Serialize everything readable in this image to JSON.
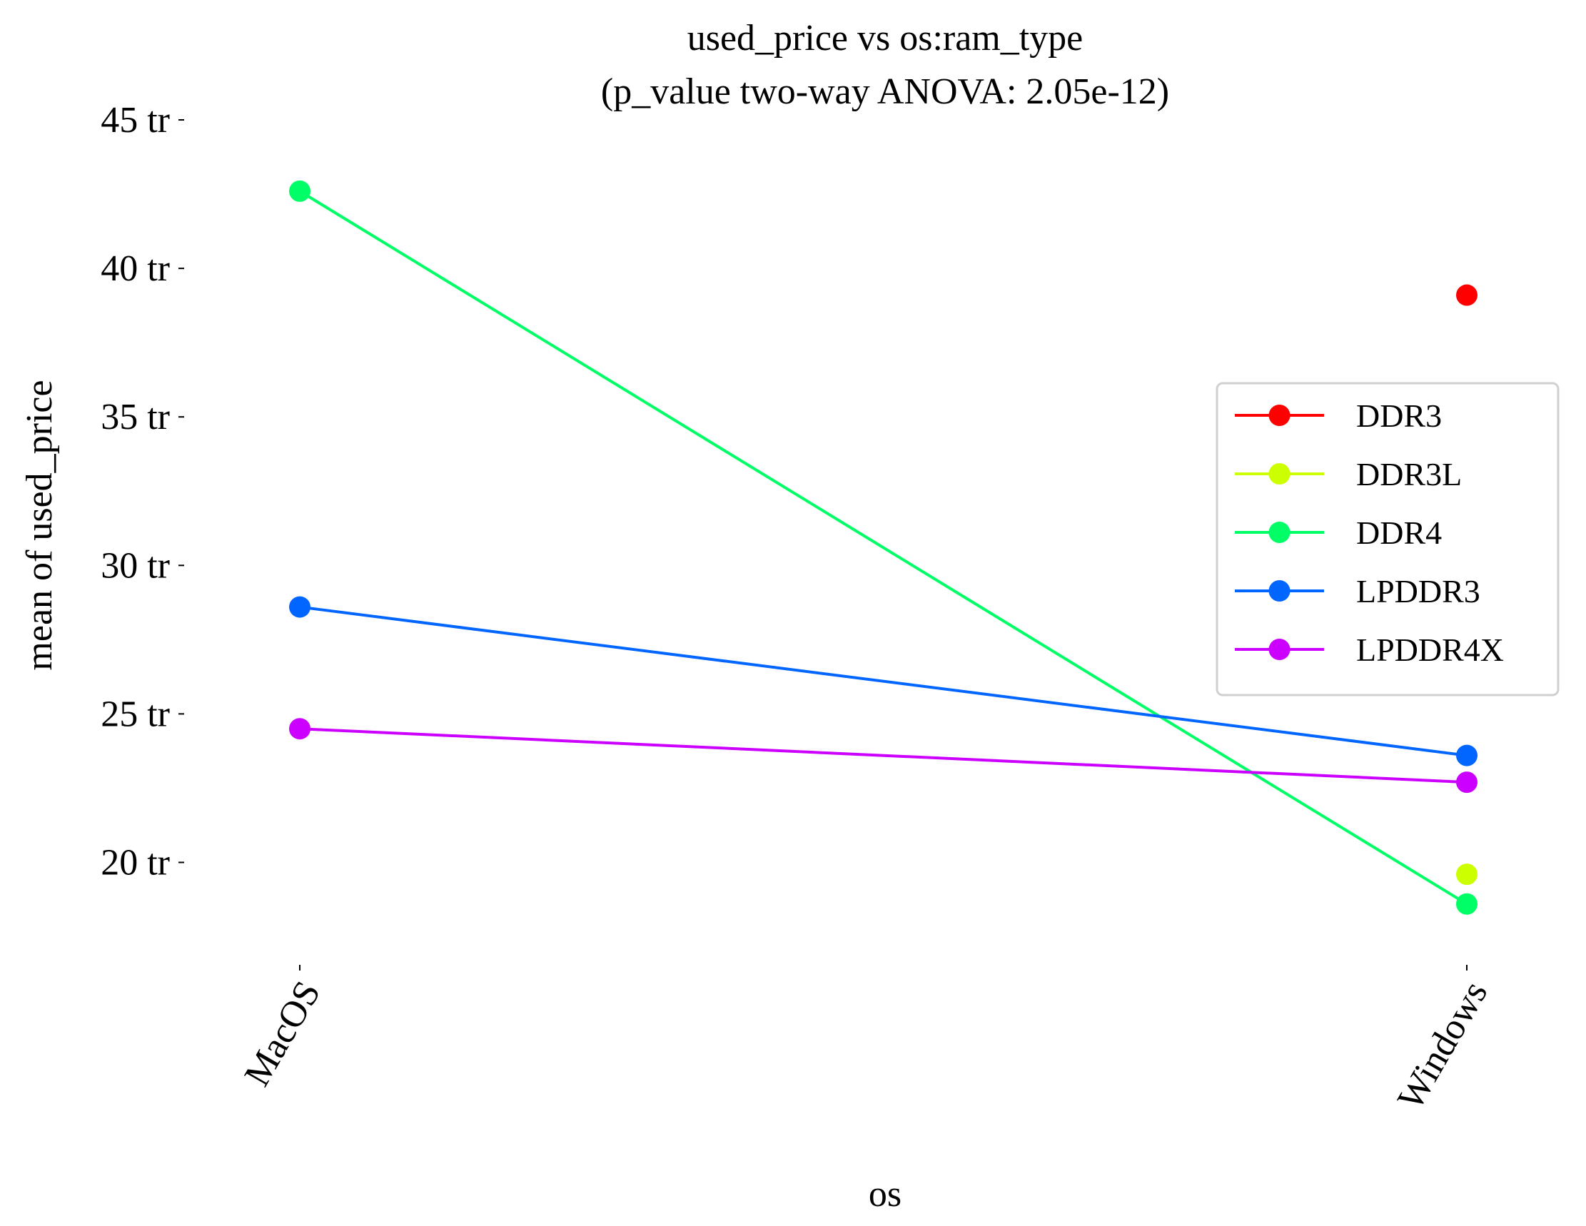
{
  "chart_data": {
    "type": "line",
    "title": "used_price vs os:ram_type",
    "subtitle": "(p_value two-way ANOVA: 2.05e-12)",
    "xlabel": "os",
    "ylabel": "mean of used_price",
    "categories": [
      "MacOS",
      "Windows"
    ],
    "ylim": [
      16.6,
      45.0
    ],
    "yticks": [
      20,
      25,
      30,
      35,
      40,
      45
    ],
    "ytick_labels": [
      "20 tr",
      "25 tr",
      "30 tr",
      "35 tr",
      "40 tr",
      "45 tr"
    ],
    "grid": false,
    "legend_position": "center-right",
    "series": [
      {
        "name": "DDR3",
        "color": "#ff0000",
        "values": [
          null,
          39.1
        ]
      },
      {
        "name": "DDR3L",
        "color": "#ccff00",
        "values": [
          null,
          19.6
        ]
      },
      {
        "name": "DDR4",
        "color": "#00ff66",
        "values": [
          42.6,
          18.6
        ]
      },
      {
        "name": "LPDDR3",
        "color": "#0066ff",
        "values": [
          28.6,
          23.6
        ]
      },
      {
        "name": "LPDDR4X",
        "color": "#cc00ff",
        "values": [
          24.5,
          22.7
        ]
      }
    ]
  }
}
